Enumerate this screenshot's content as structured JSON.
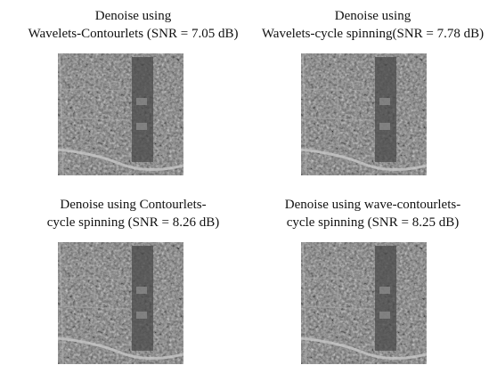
{
  "panels": [
    {
      "caption_lines": [
        "Denoise using",
        "Wavelets-Contourlets (SNR = 7.05 dB)"
      ]
    },
    {
      "caption_lines": [
        "Denoise using",
        "Wavelets-cycle spinning(SNR = 7.78 dB)"
      ]
    },
    {
      "caption_lines": [
        "Denoise using Contourlets-",
        "cycle spinning (SNR = 8.26 dB)"
      ]
    },
    {
      "caption_lines": [
        "Denoise using wave-contourlets-",
        "cycle spinning (SNR = 8.25 dB)"
      ]
    }
  ]
}
